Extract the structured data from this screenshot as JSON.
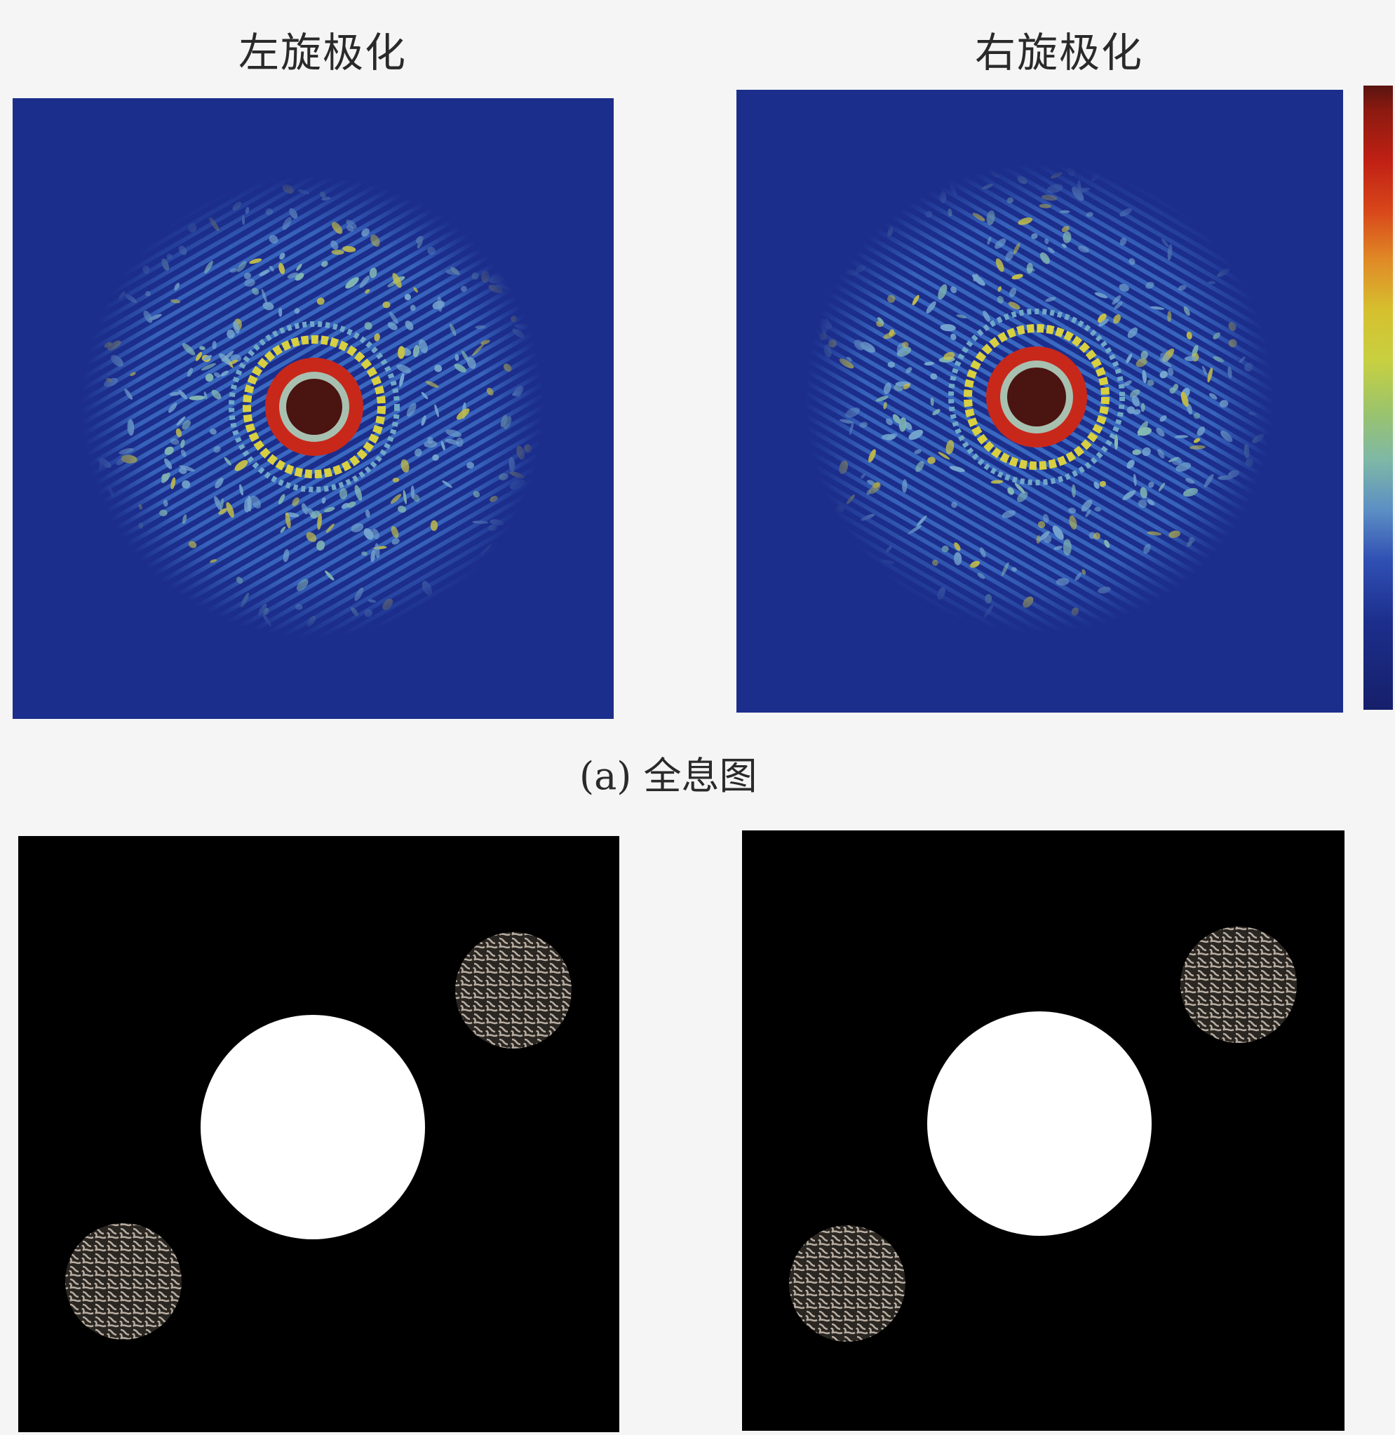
{
  "figure": {
    "left_title": "左旋极化",
    "right_title": "右旋极化",
    "caption_a": "(a) 全息图"
  },
  "colors": {
    "hologram_background": "#1c2e8c",
    "speckle_cyan": "#7fb4d6",
    "speckle_yellow": "#d8d040",
    "ring_red": "#c8281a",
    "core_dark_red": "#4a1410",
    "reconstruction_background": "#000000",
    "reconstruction_disk": "#ffffff",
    "twin_image_texture": "#b9aea2"
  }
}
